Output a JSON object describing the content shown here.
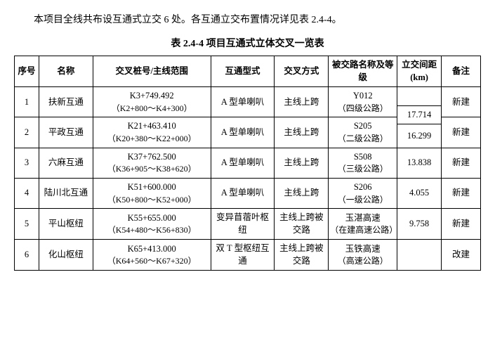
{
  "intro": "本项目全线共布设互通式立交 6 处。各互通立交布置情况详见表 2.4-4。",
  "caption": "表 2.4-4   项目互通式立体交叉一览表",
  "headers": {
    "idx": "序号",
    "name": "名称",
    "stake": "交叉桩号/主线范围",
    "type": "互通型式",
    "mode": "交叉方式",
    "road": "被交路名称及等级",
    "dist": "立交间距(km)",
    "note": "备注"
  },
  "rows": [
    {
      "idx": "1",
      "name": "扶新互通",
      "stake_main": "K3+749.492",
      "stake_sub": "（K2+800～K4+300）",
      "type": "A 型单喇叭",
      "mode": "主线上跨",
      "road_main": "Y012",
      "road_sub": "（四级公路）",
      "note": "新建"
    },
    {
      "idx": "2",
      "name": "平政互通",
      "stake_main": "K21+463.410",
      "stake_sub": "（K20+380～K22+000）",
      "type": "A 型单喇叭",
      "mode": "主线上跨",
      "road_main": "S205",
      "road_sub": "（二级公路）",
      "note": "新建"
    },
    {
      "idx": "3",
      "name": "六麻互通",
      "stake_main": "K37+762.500",
      "stake_sub": "（K36+905～K38+620）",
      "type": "A 型单喇叭",
      "mode": "主线上跨",
      "road_main": "S508",
      "road_sub": "（三级公路）",
      "note": "新建"
    },
    {
      "idx": "4",
      "name": "陆川北互通",
      "stake_main": "K51+600.000",
      "stake_sub": "（K50+800～K52+000）",
      "type": "A 型单喇叭",
      "mode": "主线上跨",
      "road_main": "S206",
      "road_sub": "（一级公路）",
      "note": "新建"
    },
    {
      "idx": "5",
      "name": "平山枢纽",
      "stake_main": "K55+655.000",
      "stake_sub": "（K54+480～K56+830）",
      "type": "变异苜蓿叶枢纽",
      "mode": "主线上跨被交路",
      "road_main": "玉湛高速",
      "road_sub": "（在建高速公路）",
      "note": "新建"
    },
    {
      "idx": "6",
      "name": "化山枢纽",
      "stake_main": "K65+413.000",
      "stake_sub": "（K64+560～K67+320）",
      "type": "双 T 型枢纽互通",
      "mode": "主线上跨被交路",
      "road_main": "玉铁高速",
      "road_sub": "（高速公路）",
      "note": "改建"
    }
  ],
  "dists": [
    "17.714",
    "16.299",
    "13.838",
    "4.055",
    "9.758"
  ]
}
